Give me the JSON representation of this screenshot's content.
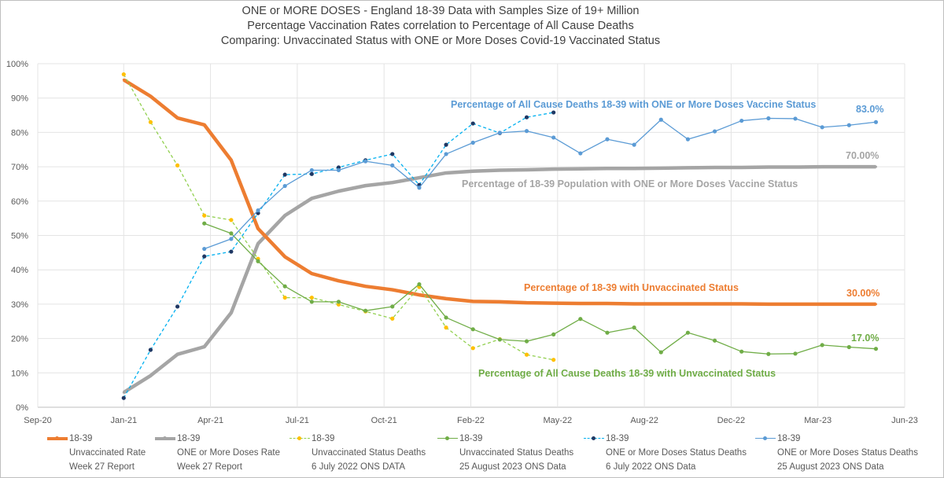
{
  "chart_data": {
    "type": "line",
    "title": [
      "ONE or MORE DOSES - England 18-39  Data with Samples Size of 19+ Million",
      "Percentage Vaccination Rates correlation to Percentage of All Cause Deaths",
      "Comparing: Unvaccinated Status with ONE or More Doses Covid-19 Vaccinated Status"
    ],
    "xlabel": "",
    "ylabel": "",
    "x_unit": "months since Jan-21",
    "x_ticks": [
      {
        "label": "Sep-20",
        "value": -3.2
      },
      {
        "label": "Jan-21",
        "value": 0
      },
      {
        "label": "Apr-21",
        "value": 3.23
      },
      {
        "label": "Jul-21",
        "value": 6.46
      },
      {
        "label": "Oct-21",
        "value": 9.69
      },
      {
        "label": "Feb-22",
        "value": 12.92
      },
      {
        "label": "May-22",
        "value": 16.15
      },
      {
        "label": "Aug-22",
        "value": 19.38
      },
      {
        "label": "Dec-22",
        "value": 22.61
      },
      {
        "label": "Mar-23",
        "value": 25.84
      },
      {
        "label": "Jun-23",
        "value": 29.07
      }
    ],
    "xlim": [
      -3.2,
      29.07
    ],
    "ylim": [
      0,
      100
    ],
    "y_ticks": [
      "0%",
      "10%",
      "20%",
      "30%",
      "40%",
      "50%",
      "60%",
      "70%",
      "80%",
      "90%",
      "100%"
    ],
    "grid": true,
    "legend_position": "bottom",
    "series": [
      {
        "name": "18-39",
        "legend_lines": [
          "Unvaccinated Rate",
          "Week 27 Report"
        ],
        "color": "#ed7d31",
        "style": "thick",
        "start": 0,
        "values": [
          95.3,
          90.5,
          84.2,
          82.2,
          71.9,
          52.0,
          43.8,
          38.9,
          36.8,
          35.2,
          34.2,
          32.7,
          31.6,
          30.8,
          30.7,
          30.4,
          30.3,
          30.2,
          30.2,
          30.1,
          30.1,
          30.1,
          30.1,
          30.1,
          30.0,
          30.0,
          30.0,
          30.0,
          30.0
        ]
      },
      {
        "name": "18-39",
        "legend_lines": [
          "ONE or More Doses Rate",
          "Week 27 Report"
        ],
        "color": "#a5a5a5",
        "style": "thick",
        "start": 0,
        "values": [
          4.3,
          9.2,
          15.4,
          17.6,
          27.5,
          47.6,
          55.8,
          60.8,
          62.9,
          64.5,
          65.4,
          66.8,
          68.2,
          68.7,
          69.0,
          69.1,
          69.3,
          69.4,
          69.5,
          69.5,
          69.6,
          69.7,
          69.8,
          69.8,
          69.9,
          69.9,
          70.0,
          70.0,
          70.0
        ]
      },
      {
        "name": "18-39",
        "legend_lines": [
          "Unvaccinated Status Deaths",
          "6 July 2022 ONS DATA"
        ],
        "color": "#92d050",
        "marker": "#ffc000",
        "style": "dashed",
        "start": 0,
        "values": [
          96.9,
          83.0,
          70.4,
          55.8,
          54.5,
          43.2,
          31.9,
          31.9,
          29.9,
          27.9,
          25.8,
          35.0,
          23.2,
          17.2,
          19.8,
          15.3,
          13.8
        ]
      },
      {
        "name": "18-39",
        "legend_lines": [
          "Unvaccinated Status Deaths",
          "25 August 2023 ONS Data"
        ],
        "color": "#70ad47",
        "marker": "#70ad47",
        "style": "solid",
        "start": 3,
        "values": [
          53.5,
          50.6,
          42.5,
          35.2,
          30.7,
          30.7,
          28.1,
          29.3,
          35.8,
          26.1,
          22.7,
          19.7,
          19.2,
          21.2,
          25.7,
          21.7,
          23.2,
          16.0,
          21.7,
          19.4,
          16.2,
          15.5,
          15.6,
          18.1,
          17.5,
          17.0
        ]
      },
      {
        "name": "18-39",
        "legend_lines": [
          "ONE or More Doses Status Deaths",
          "6 July 2022 ONS Data"
        ],
        "color": "#00b0f0",
        "marker": "#1f3864",
        "style": "dashed",
        "start": 0,
        "values": [
          2.7,
          16.7,
          29.3,
          43.9,
          45.3,
          56.5,
          67.7,
          67.9,
          69.8,
          71.9,
          73.7,
          64.7,
          76.4,
          82.6,
          79.8,
          84.4,
          85.8
        ]
      },
      {
        "name": "18-39",
        "legend_lines": [
          "ONE or More Doses Status Deaths",
          "25 August 2023 ONS Data"
        ],
        "color": "#5b9bd5",
        "marker": "#5b9bd5",
        "style": "solid",
        "start": 3,
        "values": [
          46.1,
          49.0,
          57.3,
          64.4,
          69.0,
          69.0,
          71.6,
          70.4,
          63.9,
          73.7,
          77.0,
          79.9,
          80.4,
          78.5,
          73.9,
          78.0,
          76.4,
          83.7,
          78.0,
          80.3,
          83.4,
          84.1,
          84.0,
          81.5,
          82.1,
          83.0
        ]
      }
    ],
    "annotations": [
      {
        "text": "Percentage of All Cause Deaths 18-39 with ONE or More Doses Vaccine Status",
        "color": "#5b9bd5"
      },
      {
        "text": "83.0%",
        "color": "#5b9bd5"
      },
      {
        "text": "70.00%",
        "color": "#a5a5a5"
      },
      {
        "text": "Percentage of 18-39 Population  with ONE or More Doses Vaccine Status",
        "color": "#a5a5a5"
      },
      {
        "text": "Percentage of 18-39 with Unvaccinated Status",
        "color": "#ed7d31"
      },
      {
        "text": "30.00%",
        "color": "#ed7d31"
      },
      {
        "text": "17.0%",
        "color": "#70ad47"
      },
      {
        "text": "Percentage of All Cause Deaths 18-39 with Unvaccinated Status",
        "color": "#70ad47"
      }
    ]
  }
}
